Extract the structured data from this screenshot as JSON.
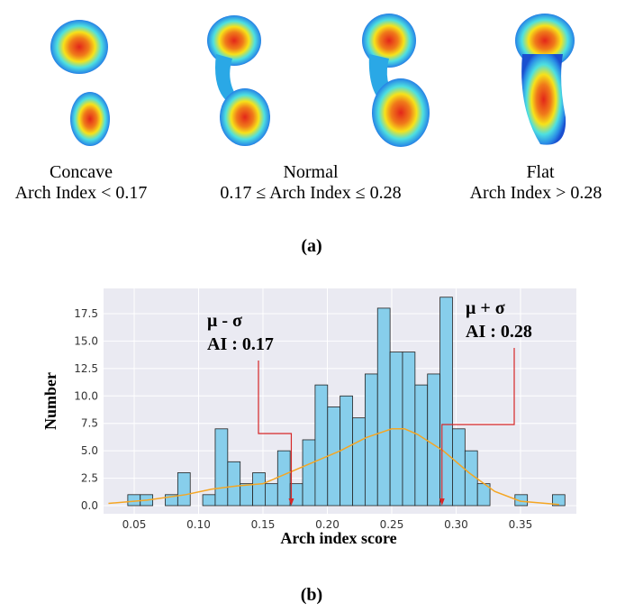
{
  "panel_a": {
    "items": [
      {
        "name": "Concave",
        "rule": "Arch Index < 0.17"
      },
      {
        "name": "Normal",
        "rule": "0.17 ≤ Arch Index ≤ 0.28"
      },
      {
        "name": "Flat",
        "rule": "Arch Index > 0.28"
      }
    ],
    "caption": "(a)"
  },
  "chart_data": {
    "type": "histogram",
    "xlabel": "Arch index score",
    "ylabel": "Number",
    "caption": "(b)",
    "bins": [
      0.045,
      0.0547,
      0.0644,
      0.0741,
      0.0838,
      0.0935,
      0.1032,
      0.1129,
      0.1226,
      0.1323,
      0.142,
      0.1517,
      0.1614,
      0.1711,
      0.1808,
      0.1905,
      0.2002,
      0.2099,
      0.2196,
      0.2293,
      0.239,
      0.2487,
      0.2584,
      0.2681,
      0.2778,
      0.2875,
      0.2972,
      0.3069,
      0.3166,
      0.3263,
      0.336,
      0.3457,
      0.3554,
      0.3651,
      0.3748,
      0.3845
    ],
    "values": [
      1,
      1,
      0,
      1,
      3,
      0,
      1,
      7,
      4,
      2,
      3,
      2,
      5,
      2,
      6,
      11,
      9,
      10,
      8,
      12,
      18,
      14,
      14,
      11,
      12,
      19,
      7,
      5,
      2,
      0,
      0,
      1,
      0,
      0,
      1
    ],
    "color": "#87ceeb",
    "edgecolor": "#222222",
    "density": {
      "color": "#f5a623",
      "x": [
        0.03,
        0.06,
        0.09,
        0.11,
        0.13,
        0.15,
        0.17,
        0.19,
        0.21,
        0.23,
        0.25,
        0.26,
        0.27,
        0.29,
        0.31,
        0.33,
        0.35,
        0.38
      ],
      "values": [
        0.2,
        0.5,
        1.0,
        1.5,
        1.8,
        2.0,
        3.0,
        4.0,
        5.0,
        6.2,
        7.0,
        7.0,
        6.5,
        5.0,
        3.0,
        1.3,
        0.4,
        0.1
      ]
    },
    "annotations": [
      {
        "line1": "μ - σ",
        "line2": "AI : 0.17",
        "x": 0.172,
        "color": "#d62728"
      },
      {
        "line1": "μ + σ",
        "line2": "AI : 0.28",
        "x": 0.289,
        "color": "#d62728"
      }
    ],
    "xlim": [
      0.0262,
      0.3934
    ],
    "ylim": [
      -0.74,
      19.8
    ],
    "xticks": [
      0.05,
      {
        "value": 0.1,
        "label": "0.10"
      },
      0.15,
      {
        "value": 0.2,
        "label": "0.20"
      },
      0.25,
      {
        "value": 0.3,
        "label": "0.30"
      },
      0.35
    ],
    "yticks": [
      {
        "value": 0,
        "label": "0.0"
      },
      {
        "value": 2.5,
        "label": "2.5"
      },
      {
        "value": 5,
        "label": "5.0"
      },
      {
        "value": 7.5,
        "label": "7.5"
      },
      {
        "value": 10,
        "label": "10.0"
      },
      {
        "value": 12.5,
        "label": "12.5"
      },
      {
        "value": 15,
        "label": "15.0"
      },
      {
        "value": 17.5,
        "label": "17.5"
      }
    ],
    "grid": true,
    "background": "#eaeaf2"
  }
}
